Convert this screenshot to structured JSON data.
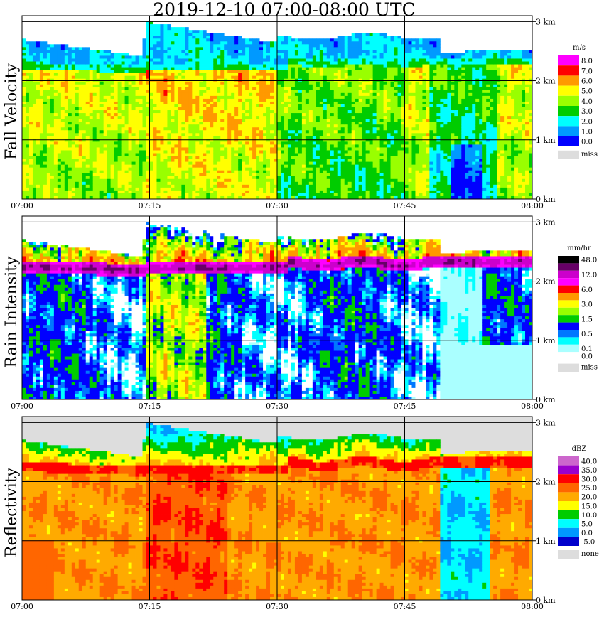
{
  "title": "2019-12-10   07:00-08:00 UTC",
  "chart_data": [
    {
      "type": "heatmap",
      "ylabel": "Fall Velocity",
      "x_ticks": [
        "07:00",
        "07:15",
        "07:30",
        "07:45",
        "08:00"
      ],
      "y_ticks": [
        "0 km",
        "1 km",
        "2 km",
        "3 km"
      ],
      "ylim_km": [
        0,
        3.1
      ],
      "grid": true,
      "legend": {
        "unit": "m/s",
        "placement": "right",
        "levels": [
          {
            "label": "8.0",
            "color": "#ff00ff"
          },
          {
            "label": "7.0",
            "color": "#ff0000"
          },
          {
            "label": "6.0",
            "color": "#ff9900"
          },
          {
            "label": "5.0",
            "color": "#ffff00"
          },
          {
            "label": "4.0",
            "color": "#99ff00"
          },
          {
            "label": "3.0",
            "color": "#00cc00"
          },
          {
            "label": "2.0",
            "color": "#00ffff"
          },
          {
            "label": "1.0",
            "color": "#0099ff"
          },
          {
            "label": "0.0",
            "color": "#0000ff"
          }
        ],
        "missing": {
          "label": "miss",
          "color": "#dddddd"
        }
      }
    },
    {
      "type": "heatmap",
      "ylabel": "Rain Intensity",
      "x_ticks": [
        "07:00",
        "07:15",
        "07:30",
        "07:45",
        "08:00"
      ],
      "y_ticks": [
        "0 km",
        "1 km",
        "2 km",
        "3 km"
      ],
      "ylim_km": [
        0,
        3.1
      ],
      "grid": true,
      "legend": {
        "unit": "mm/hr",
        "placement": "right",
        "levels": [
          {
            "label": "48.0",
            "color": "#000000"
          },
          {
            "label": "",
            "color": "#660066"
          },
          {
            "label": "12.0",
            "color": "#cc00cc"
          },
          {
            "label": "",
            "color": "#ff00ff"
          },
          {
            "label": "6.0",
            "color": "#ff0000"
          },
          {
            "label": "",
            "color": "#ff9900"
          },
          {
            "label": "3.0",
            "color": "#ffff00"
          },
          {
            "label": "",
            "color": "#99ff00"
          },
          {
            "label": "1.5",
            "color": "#00cc00"
          },
          {
            "label": "",
            "color": "#0000ff"
          },
          {
            "label": "0.5",
            "color": "#0077ff"
          },
          {
            "label": "",
            "color": "#00ffff"
          },
          {
            "label": "0.1",
            "color": "#aaffff"
          },
          {
            "label": "0.0",
            "color": "#ffffff"
          }
        ],
        "missing": {
          "label": "miss",
          "color": "#dddddd"
        }
      }
    },
    {
      "type": "heatmap",
      "ylabel": "Reflectivity",
      "x_ticks": [
        "07:00",
        "07:15",
        "07:30",
        "07:45",
        "08:00"
      ],
      "y_ticks": [
        "0 km",
        "1 km",
        "2 km",
        "3 km"
      ],
      "ylim_km": [
        0,
        3.1
      ],
      "grid": true,
      "legend": {
        "unit": "dBZ",
        "placement": "right",
        "levels": [
          {
            "label": "40.0",
            "color": "#cc66cc"
          },
          {
            "label": "35.0",
            "color": "#9900cc"
          },
          {
            "label": "30.0",
            "color": "#ff0000"
          },
          {
            "label": "25.0",
            "color": "#ff6600"
          },
          {
            "label": "20.0",
            "color": "#ffaa00"
          },
          {
            "label": "15.0",
            "color": "#ffff00"
          },
          {
            "label": "10.0",
            "color": "#00cc00"
          },
          {
            "label": "5.0",
            "color": "#00ffff"
          },
          {
            "label": "0.0",
            "color": "#0099ff"
          },
          {
            "label": "-5.0",
            "color": "#0000cc"
          }
        ],
        "missing": {
          "label": "none",
          "color": "#dddddd"
        }
      }
    }
  ]
}
